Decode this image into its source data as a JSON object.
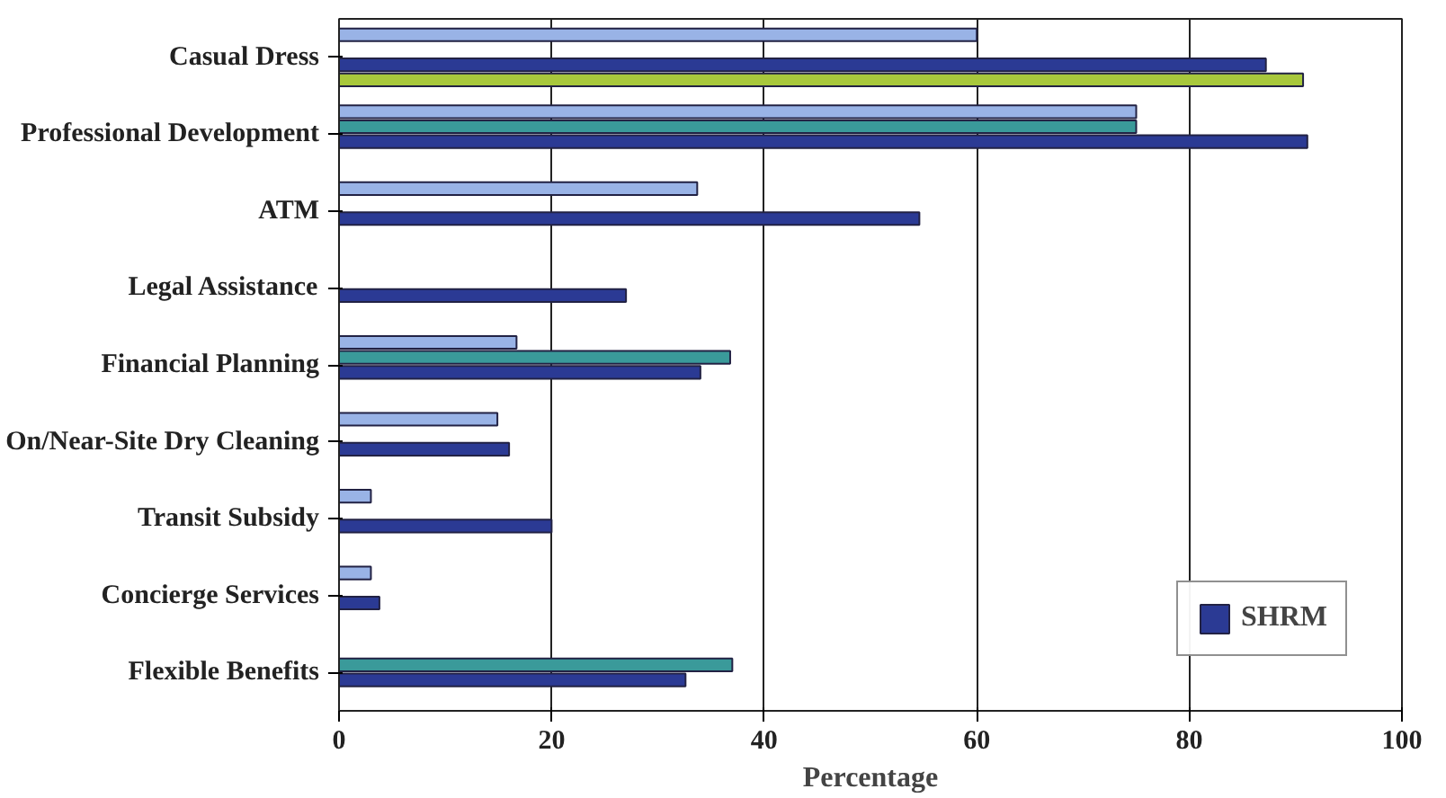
{
  "chart_data": {
    "type": "bar",
    "orientation": "horizontal",
    "xlabel": "Percentage",
    "categories": [
      "Casual Dress",
      "Professional Development",
      "ATM",
      "Legal Assistance",
      "Financial Planning",
      "On/Near-Site Dry Cleaning",
      "Transit Subsidy",
      "Concierge Services",
      "Flexible Benefits"
    ],
    "series": [
      {
        "color": "#99b3e6",
        "values": [
          60,
          75,
          33.7,
          null,
          16.7,
          14.9,
          3,
          3,
          null
        ]
      },
      {
        "color": "#3a9a9a",
        "values": [
          null,
          75,
          null,
          null,
          36.8,
          null,
          null,
          null,
          37
        ]
      },
      {
        "name": "SHRM",
        "color": "#2b3a94",
        "values": [
          87.2,
          91.1,
          54.6,
          27,
          34,
          16,
          20,
          3.8,
          32.6
        ]
      },
      {
        "color": "#a8c83c",
        "values": [
          90.7,
          null,
          null,
          null,
          null,
          null,
          null,
          null,
          null
        ]
      }
    ],
    "xlim": [
      0,
      100
    ],
    "xticks": [
      0,
      20,
      40,
      60,
      80,
      100
    ],
    "grid": "x",
    "legend": "bottom right"
  }
}
